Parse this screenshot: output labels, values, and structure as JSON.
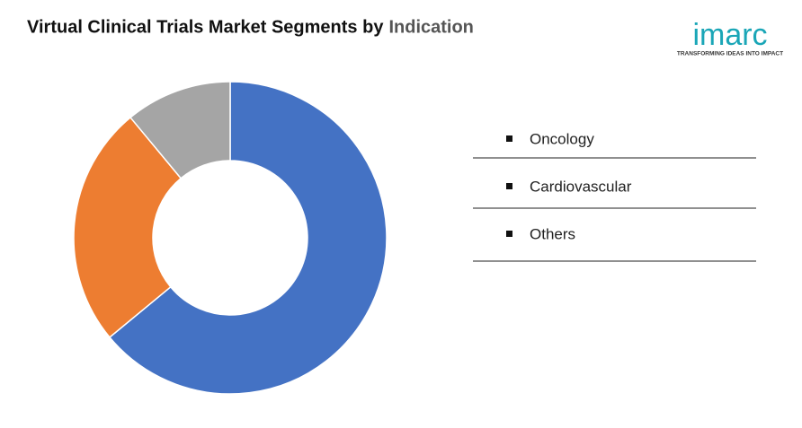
{
  "chart_data": {
    "type": "donut",
    "title": "Virtual Clinical Trials Market Segments by",
    "title_highlight": "Indication",
    "categories": [
      "Oncology",
      "Cardiovascular",
      "Others"
    ],
    "values": [
      64,
      25,
      11
    ],
    "colors": [
      "#4472c4",
      "#ed7d31",
      "#a5a5a5"
    ],
    "legend": "right"
  },
  "logo": {
    "name": "imarc",
    "tagline": "TRANSFORMING IDEAS INTO IMPACT"
  }
}
